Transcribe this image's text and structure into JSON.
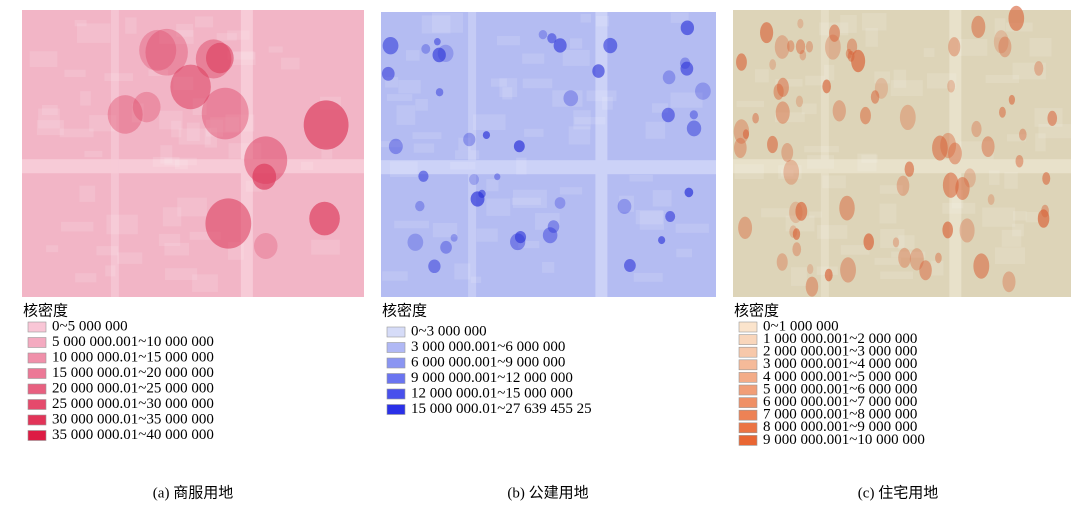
{
  "panels": [
    {
      "legend_title": "核密度",
      "caption": "(a) 商服用地",
      "items": [
        {
          "label": "0~5 000 000",
          "color": "#f9c6d6"
        },
        {
          "label": "5 000 000.001~10 000 000",
          "color": "#f4aac0"
        },
        {
          "label": "10 000 000.01~15 000 000",
          "color": "#f090aa"
        },
        {
          "label": "15 000 000.01~20 000 000",
          "color": "#ec7896"
        },
        {
          "label": "20 000 000.01~25 000 000",
          "color": "#e86080"
        },
        {
          "label": "25 000 000.01~30 000 000",
          "color": "#e54a6c"
        },
        {
          "label": "30 000 000.01~35 000 000",
          "color": "#e23458"
        },
        {
          "label": "35 000 000.01~40 000 000",
          "color": "#dd1c44"
        }
      ]
    },
    {
      "legend_title": "核密度",
      "caption": "(b) 公建用地",
      "items": [
        {
          "label": "0~3 000 000",
          "color": "#d6dcf8"
        },
        {
          "label": "3 000 000.001~6 000 000",
          "color": "#b0b8f5"
        },
        {
          "label": "6 000 000.001~9 000 000",
          "color": "#8a95f2"
        },
        {
          "label": "9 000 000.001~12 000 000",
          "color": "#6a74f0"
        },
        {
          "label": "12 000 000.01~15 000 000",
          "color": "#4850ec"
        },
        {
          "label": "15 000 000.01~27 639 455 25",
          "color": "#2a30e8"
        }
      ]
    },
    {
      "legend_title": "核密度",
      "caption": "(c) 住宅用地",
      "items": [
        {
          "label": "0~1 000 000",
          "color": "#fbe4cc"
        },
        {
          "label": "1 000 000.001~2 000 000",
          "color": "#f9d6bb"
        },
        {
          "label": "2 000 000.001~3 000 000",
          "color": "#f7c8aa"
        },
        {
          "label": "3 000 000.001~4 000 000",
          "color": "#f5ba99"
        },
        {
          "label": "4 000 000.001~5 000 000",
          "color": "#f3ac88"
        },
        {
          "label": "5 000 000.001~6 000 000",
          "color": "#f19e77"
        },
        {
          "label": "6 000 000.001~7 000 000",
          "color": "#ef9066"
        },
        {
          "label": "7 000 000.001~8 000 000",
          "color": "#ed8255"
        },
        {
          "label": "8 000 000.001~9 000 000",
          "color": "#eb7444"
        },
        {
          "label": "9 000 000.001~10 000 000",
          "color": "#e96633"
        }
      ]
    }
  ]
}
